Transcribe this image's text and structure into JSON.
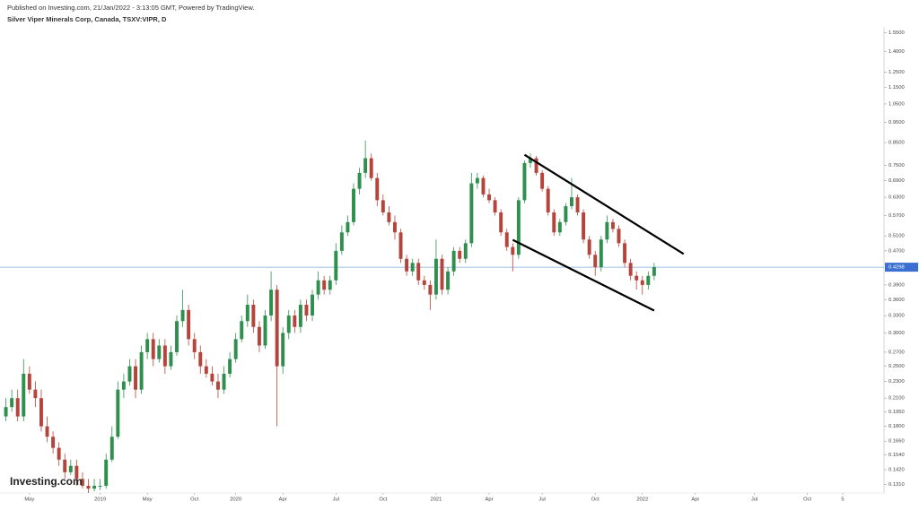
{
  "header": {
    "published": "Published on Investing.com, 21/Jan/2022 - 3:13:05 GMT, Powered by TradingView.",
    "symbol": "Silver Viper Minerals Corp, Canada, TSXV:VIPR, D"
  },
  "watermark": "Investing.com",
  "chart_data": {
    "type": "candlestick",
    "log_scale": true,
    "up_color": "#2f8f4e",
    "down_color": "#b5453c",
    "xlim": [
      -1,
      149
    ],
    "ylim": [
      0.125,
      1.6
    ],
    "xticks": [
      {
        "value": 4,
        "label": "May"
      },
      {
        "value": 16,
        "label": "2019"
      },
      {
        "value": 24,
        "label": "May"
      },
      {
        "value": 32,
        "label": "Oct"
      },
      {
        "value": 39,
        "label": "2020"
      },
      {
        "value": 47,
        "label": "Apr"
      },
      {
        "value": 56,
        "label": "Jul"
      },
      {
        "value": 64,
        "label": "Oct"
      },
      {
        "value": 73,
        "label": "2021"
      },
      {
        "value": 82,
        "label": "Apr"
      },
      {
        "value": 91,
        "label": "Jul"
      },
      {
        "value": 100,
        "label": "Oct"
      },
      {
        "value": 108,
        "label": "2022"
      },
      {
        "value": 117,
        "label": "Apr"
      },
      {
        "value": 127,
        "label": "Jul"
      },
      {
        "value": 136,
        "label": "Oct"
      },
      {
        "value": 142,
        "label": "5"
      }
    ],
    "yticks": [
      {
        "value": 1.55,
        "label": "1.5500"
      },
      {
        "value": 1.4,
        "label": "1.4000"
      },
      {
        "value": 1.25,
        "label": "1.2500"
      },
      {
        "value": 1.15,
        "label": "1.1500"
      },
      {
        "value": 1.05,
        "label": "1.0500"
      },
      {
        "value": 0.95,
        "label": "0.9500"
      },
      {
        "value": 0.85,
        "label": "0.8500"
      },
      {
        "value": 0.75,
        "label": "0.7500"
      },
      {
        "value": 0.69,
        "label": "0.6900"
      },
      {
        "value": 0.63,
        "label": "0.6300"
      },
      {
        "value": 0.57,
        "label": "0.5700"
      },
      {
        "value": 0.51,
        "label": "0.5100"
      },
      {
        "value": 0.47,
        "label": "0.4700"
      },
      {
        "value": 0.39,
        "label": "0.3900"
      },
      {
        "value": 0.36,
        "label": "0.3600"
      },
      {
        "value": 0.33,
        "label": "0.3300"
      },
      {
        "value": 0.3,
        "label": "0.3000"
      },
      {
        "value": 0.27,
        "label": "0.2700"
      },
      {
        "value": 0.25,
        "label": "0.2500"
      },
      {
        "value": 0.23,
        "label": "0.2300"
      },
      {
        "value": 0.21,
        "label": "0.2100"
      },
      {
        "value": 0.195,
        "label": "0.1950"
      },
      {
        "value": 0.18,
        "label": "0.1800"
      },
      {
        "value": 0.166,
        "label": "0.1660"
      },
      {
        "value": 0.154,
        "label": "0.1540"
      },
      {
        "value": 0.142,
        "label": "0.1420"
      },
      {
        "value": 0.131,
        "label": "0.1310"
      }
    ],
    "current_price": {
      "value": 0.4298,
      "label": "0.4298"
    },
    "open": [
      0.19,
      0.2,
      0.21,
      0.19,
      0.24,
      0.22,
      0.21,
      0.18,
      0.17,
      0.16,
      0.15,
      0.14,
      0.145,
      0.135,
      0.13,
      0.128,
      0.13,
      0.13,
      0.15,
      0.17,
      0.22,
      0.23,
      0.25,
      0.22,
      0.27,
      0.29,
      0.26,
      0.28,
      0.25,
      0.27,
      0.32,
      0.34,
      0.29,
      0.27,
      0.25,
      0.24,
      0.23,
      0.22,
      0.24,
      0.26,
      0.29,
      0.32,
      0.35,
      0.31,
      0.28,
      0.33,
      0.38,
      0.25,
      0.3,
      0.33,
      0.31,
      0.35,
      0.33,
      0.37,
      0.4,
      0.38,
      0.4,
      0.47,
      0.52,
      0.55,
      0.66,
      0.72,
      0.78,
      0.7,
      0.62,
      0.58,
      0.55,
      0.52,
      0.45,
      0.42,
      0.44,
      0.4,
      0.39,
      0.37,
      0.45,
      0.38,
      0.42,
      0.47,
      0.45,
      0.49,
      0.68,
      0.7,
      0.64,
      0.62,
      0.58,
      0.52,
      0.48,
      0.46,
      0.62,
      0.76,
      0.78,
      0.72,
      0.66,
      0.58,
      0.52,
      0.55,
      0.6,
      0.63,
      0.58,
      0.5,
      0.46,
      0.43,
      0.5,
      0.55,
      0.53,
      0.49,
      0.44,
      0.41,
      0.4,
      0.39,
      0.41
    ],
    "high": [
      0.21,
      0.22,
      0.22,
      0.26,
      0.25,
      0.23,
      0.22,
      0.19,
      0.175,
      0.165,
      0.155,
      0.15,
      0.15,
      0.14,
      0.135,
      0.135,
      0.135,
      0.155,
      0.18,
      0.23,
      0.24,
      0.26,
      0.26,
      0.28,
      0.3,
      0.3,
      0.29,
      0.29,
      0.28,
      0.33,
      0.38,
      0.35,
      0.3,
      0.28,
      0.26,
      0.25,
      0.24,
      0.25,
      0.27,
      0.3,
      0.33,
      0.37,
      0.36,
      0.32,
      0.34,
      0.42,
      0.39,
      0.31,
      0.34,
      0.34,
      0.36,
      0.36,
      0.38,
      0.42,
      0.41,
      0.41,
      0.49,
      0.54,
      0.57,
      0.68,
      0.74,
      0.86,
      0.8,
      0.72,
      0.64,
      0.6,
      0.57,
      0.53,
      0.46,
      0.45,
      0.45,
      0.41,
      0.4,
      0.5,
      0.46,
      0.43,
      0.48,
      0.48,
      0.5,
      0.72,
      0.72,
      0.71,
      0.66,
      0.63,
      0.59,
      0.53,
      0.49,
      0.63,
      0.77,
      0.8,
      0.79,
      0.73,
      0.67,
      0.59,
      0.56,
      0.61,
      0.7,
      0.64,
      0.59,
      0.51,
      0.47,
      0.51,
      0.57,
      0.56,
      0.54,
      0.5,
      0.45,
      0.42,
      0.41,
      0.42,
      0.44
    ],
    "low": [
      0.185,
      0.195,
      0.185,
      0.185,
      0.215,
      0.2,
      0.175,
      0.165,
      0.155,
      0.145,
      0.135,
      0.138,
      0.13,
      0.128,
      0.125,
      0.126,
      0.127,
      0.128,
      0.148,
      0.168,
      0.21,
      0.225,
      0.21,
      0.215,
      0.26,
      0.25,
      0.255,
      0.24,
      0.245,
      0.265,
      0.31,
      0.28,
      0.26,
      0.24,
      0.235,
      0.225,
      0.21,
      0.215,
      0.235,
      0.255,
      0.285,
      0.31,
      0.3,
      0.27,
      0.275,
      0.32,
      0.18,
      0.24,
      0.29,
      0.3,
      0.3,
      0.32,
      0.32,
      0.36,
      0.37,
      0.37,
      0.39,
      0.46,
      0.51,
      0.54,
      0.64,
      0.7,
      0.69,
      0.6,
      0.57,
      0.54,
      0.5,
      0.44,
      0.41,
      0.41,
      0.39,
      0.38,
      0.34,
      0.36,
      0.37,
      0.37,
      0.41,
      0.44,
      0.44,
      0.48,
      0.66,
      0.63,
      0.61,
      0.57,
      0.51,
      0.47,
      0.42,
      0.45,
      0.61,
      0.74,
      0.71,
      0.65,
      0.57,
      0.51,
      0.51,
      0.54,
      0.59,
      0.57,
      0.49,
      0.45,
      0.41,
      0.42,
      0.49,
      0.52,
      0.48,
      0.43,
      0.4,
      0.38,
      0.37,
      0.38,
      0.4
    ],
    "close": [
      0.2,
      0.21,
      0.19,
      0.24,
      0.22,
      0.21,
      0.18,
      0.17,
      0.16,
      0.15,
      0.14,
      0.145,
      0.135,
      0.13,
      0.128,
      0.13,
      0.13,
      0.15,
      0.17,
      0.22,
      0.23,
      0.25,
      0.22,
      0.27,
      0.29,
      0.26,
      0.28,
      0.25,
      0.27,
      0.32,
      0.34,
      0.29,
      0.27,
      0.25,
      0.24,
      0.23,
      0.22,
      0.24,
      0.26,
      0.29,
      0.32,
      0.35,
      0.31,
      0.28,
      0.33,
      0.38,
      0.25,
      0.3,
      0.33,
      0.31,
      0.35,
      0.33,
      0.37,
      0.4,
      0.38,
      0.4,
      0.47,
      0.52,
      0.55,
      0.66,
      0.72,
      0.78,
      0.7,
      0.62,
      0.58,
      0.55,
      0.52,
      0.45,
      0.42,
      0.44,
      0.4,
      0.39,
      0.37,
      0.45,
      0.38,
      0.42,
      0.47,
      0.45,
      0.49,
      0.68,
      0.7,
      0.64,
      0.62,
      0.58,
      0.52,
      0.48,
      0.46,
      0.62,
      0.76,
      0.78,
      0.72,
      0.66,
      0.58,
      0.52,
      0.55,
      0.6,
      0.63,
      0.58,
      0.5,
      0.46,
      0.43,
      0.5,
      0.55,
      0.53,
      0.49,
      0.44,
      0.41,
      0.4,
      0.39,
      0.41,
      0.43
    ],
    "trendlines": [
      {
        "x": [
          88,
          115
        ],
        "y": [
          0.795,
          0.462
        ]
      },
      {
        "x": [
          86,
          110
        ],
        "y": [
          0.499,
          0.339
        ]
      }
    ]
  }
}
